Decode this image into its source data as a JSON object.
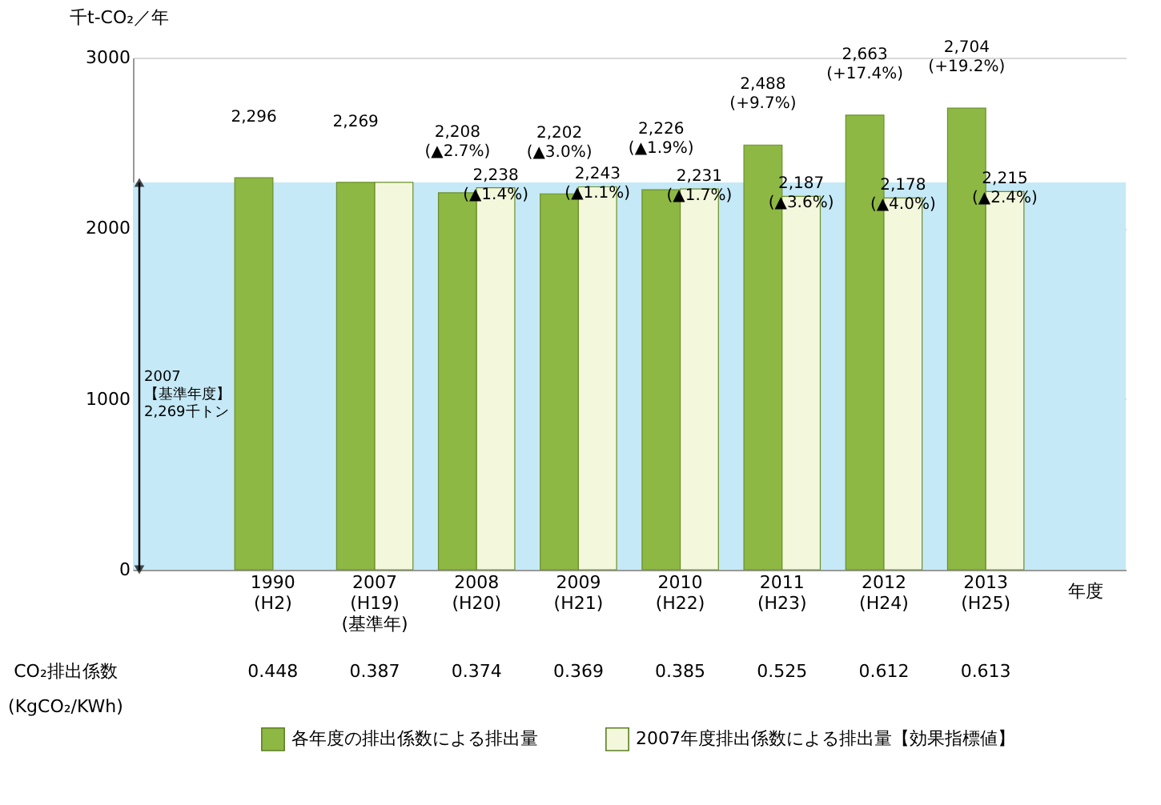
{
  "chart_data": {
    "type": "bar",
    "ylabel": "千t-CO₂／年",
    "xlabel": "年度",
    "categories": [
      "1990\n(H2)",
      "2007\n(H19)\n(基準年)",
      "2008\n(H20)",
      "2009\n(H21)",
      "2010\n(H22)",
      "2011\n(H23)",
      "2012\n(H24)",
      "2013\n(H25)"
    ],
    "series": [
      {
        "name": "各年度の排出係数による排出量",
        "color": "#8db843",
        "values": [
          2296,
          2269,
          2208,
          2202,
          2226,
          2488,
          2663,
          2704
        ],
        "value_labels": [
          "2,296",
          "2,269",
          "2,208\n(▲2.7%)",
          "2,202\n(▲3.0%)",
          "2,226\n(▲1.9%)",
          "2,488\n(+9.7%)",
          "2,663\n(+17.4%)",
          "2,704\n(+19.2%)"
        ]
      },
      {
        "name": "2007年度排出係数による排出量【効果指標値】",
        "color": "#f3f8dc",
        "values": [
          null,
          2269,
          2238,
          2243,
          2231,
          2187,
          2178,
          2215
        ],
        "value_labels": [
          null,
          null,
          "2,238\n(▲1.4%)",
          "2,243\n(▲1.1%)",
          "2,231\n(▲1.7%)",
          "2,187\n(▲3.6%)",
          "2,178\n(▲4.0%)",
          "2,215\n(▲2.4%)"
        ]
      }
    ],
    "ylim": [
      0,
      3000
    ],
    "yticks": [
      0,
      1000,
      2000,
      3000
    ],
    "grid": "y",
    "legend": "bottom",
    "bands": [
      {
        "axis": "y",
        "from": 0,
        "to": 2269,
        "label": "2007\n【基準年度】\n2,269千トン",
        "color": "#c5e9f6"
      }
    ],
    "annotations": [
      "CO₂排出係数\n(KgCO₂/KWh)",
      "0.448",
      "0.387",
      "0.374",
      "0.369",
      "0.385",
      "0.525",
      "0.612",
      "0.613"
    ]
  }
}
